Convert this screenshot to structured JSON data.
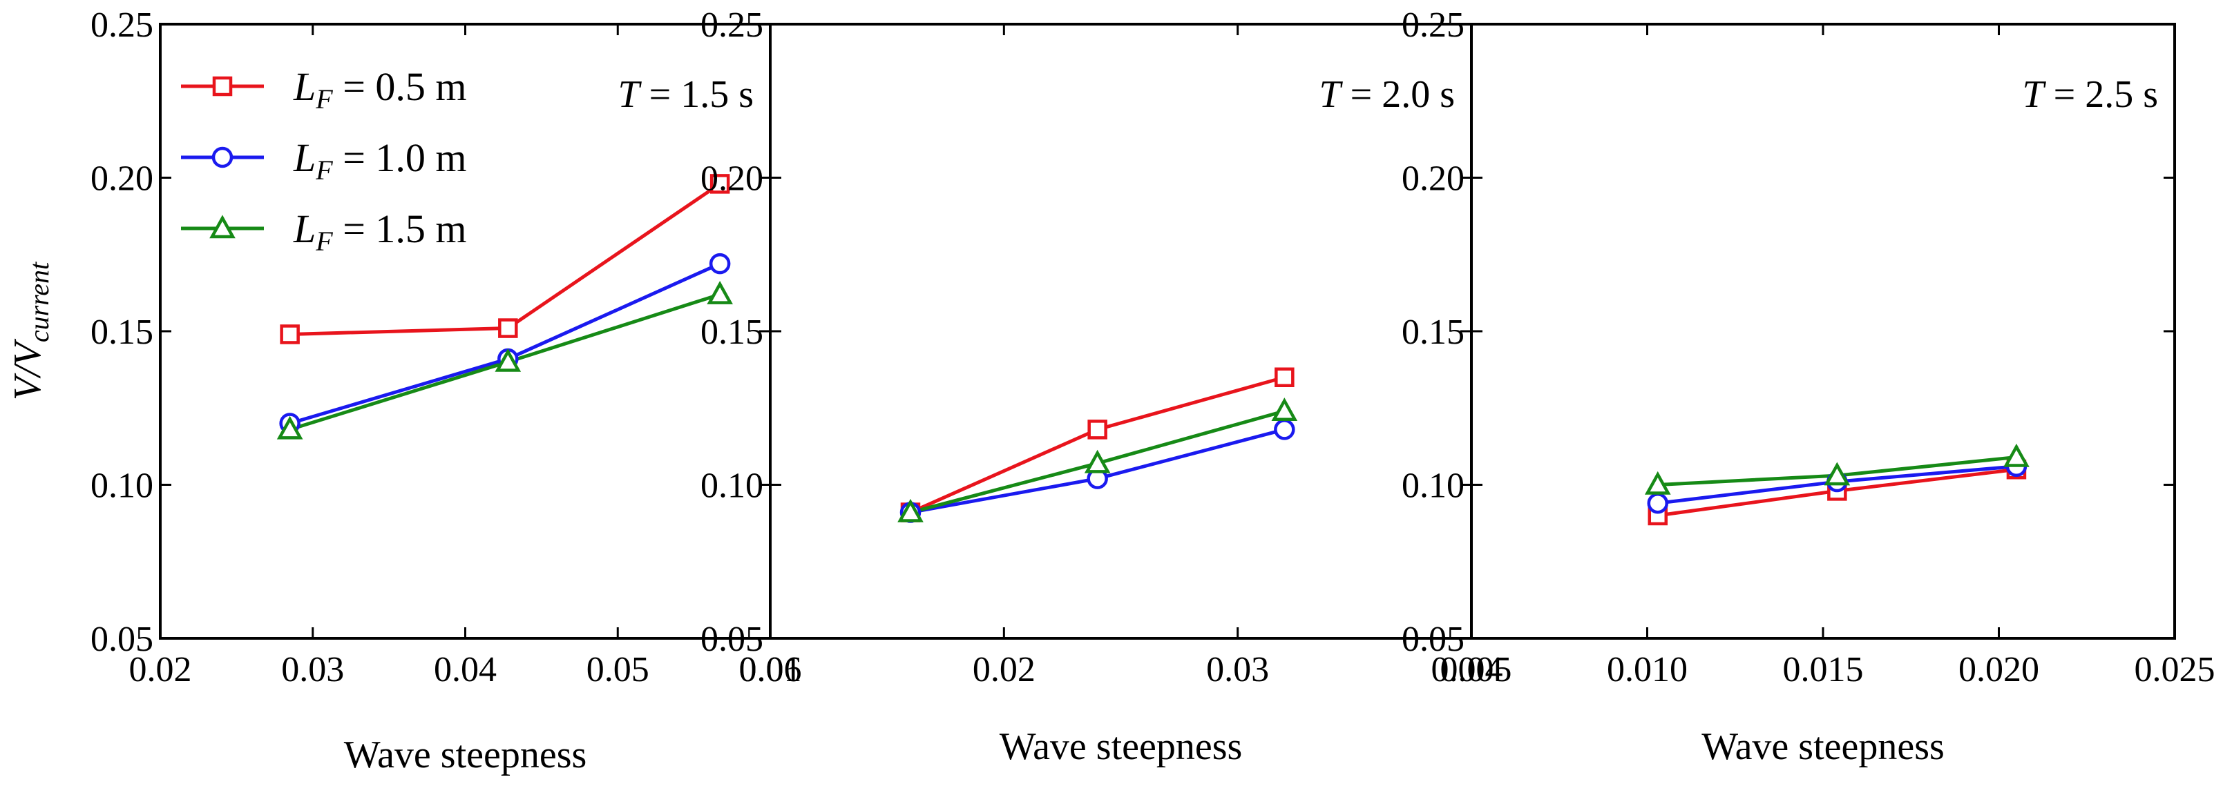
{
  "chart_data": [
    {
      "type": "line",
      "panel_label": "T = 1.5 s",
      "panel_label_italic": "T",
      "panel_label_rest": " = 1.5 s",
      "xlabel": "Wave steepness",
      "ylabel": "V/V_current",
      "ylabel_main": "V/V",
      "ylabel_sub": "current",
      "xlim": [
        0.02,
        0.06
      ],
      "ylim": [
        0.05,
        0.25
      ],
      "xticks": [
        0.02,
        0.03,
        0.04,
        0.05,
        0.06
      ],
      "xtick_labels": [
        "0.02",
        "0.03",
        "0.04",
        "0.05",
        "0.06"
      ],
      "yticks": [
        0.05,
        0.1,
        0.15,
        0.2,
        0.25
      ],
      "ytick_labels": [
        "0.05",
        "0.10",
        "0.15",
        "0.20",
        "0.25"
      ],
      "x": [
        0.0285,
        0.0428,
        0.0567
      ],
      "series": [
        {
          "name": "LF = 0.5 m",
          "color": "#e8141c",
          "marker": "square",
          "values": [
            0.149,
            0.151,
            0.198
          ]
        },
        {
          "name": "LF = 1.0 m",
          "color": "#1a1aef",
          "marker": "circle",
          "values": [
            0.12,
            0.141,
            0.172
          ]
        },
        {
          "name": "LF = 1.5 m",
          "color": "#168a16",
          "marker": "triangle",
          "values": [
            0.118,
            0.14,
            0.162
          ]
        }
      ],
      "legend": {
        "position": "top-left",
        "entries": [
          {
            "symbol": "L",
            "sub": "F",
            "rest": " = 0.5 m",
            "color": "#e8141c",
            "marker": "square"
          },
          {
            "symbol": "L",
            "sub": "F",
            "rest": " = 1.0 m",
            "color": "#1a1aef",
            "marker": "circle"
          },
          {
            "symbol": "L",
            "sub": "F",
            "rest": " = 1.5 m",
            "color": "#168a16",
            "marker": "triangle"
          }
        ]
      }
    },
    {
      "type": "line",
      "panel_label": "T = 2.0 s",
      "panel_label_italic": "T",
      "panel_label_rest": " = 2.0 s",
      "xlabel": "Wave steepness",
      "xlim": [
        0.01,
        0.04
      ],
      "ylim": [
        0.05,
        0.25
      ],
      "xticks": [
        0.01,
        0.02,
        0.03,
        0.04
      ],
      "xtick_labels": [
        "0.01",
        "0.02",
        "0.03",
        "0.04"
      ],
      "yticks": [
        0.05,
        0.1,
        0.15,
        0.2,
        0.25
      ],
      "ytick_labels": [
        "0.05",
        "0.10",
        "0.15",
        "0.20",
        "0.25"
      ],
      "x": [
        0.016,
        0.024,
        0.032
      ],
      "series": [
        {
          "name": "LF = 0.5 m",
          "color": "#e8141c",
          "marker": "square",
          "values": [
            0.091,
            0.118,
            0.135
          ]
        },
        {
          "name": "LF = 1.0 m",
          "color": "#1a1aef",
          "marker": "circle",
          "values": [
            0.091,
            0.102,
            0.118
          ]
        },
        {
          "name": "LF = 1.5 m",
          "color": "#168a16",
          "marker": "triangle",
          "values": [
            0.091,
            0.107,
            0.124
          ]
        }
      ]
    },
    {
      "type": "line",
      "panel_label": "T = 2.5 s",
      "panel_label_italic": "T",
      "panel_label_rest": " = 2.5 s",
      "xlabel": "Wave steepness",
      "xlim": [
        0.005,
        0.025
      ],
      "ylim": [
        0.05,
        0.25
      ],
      "xticks": [
        0.005,
        0.01,
        0.015,
        0.02,
        0.025
      ],
      "xtick_labels": [
        "0.005",
        "0.010",
        "0.015",
        "0.020",
        "0.025"
      ],
      "yticks": [
        0.05,
        0.1,
        0.15,
        0.2,
        0.25
      ],
      "ytick_labels": [
        "0.05",
        "0.10",
        "0.15",
        "0.20",
        "0.25"
      ],
      "x": [
        0.0103,
        0.0154,
        0.0205
      ],
      "series": [
        {
          "name": "LF = 0.5 m",
          "color": "#e8141c",
          "marker": "square",
          "values": [
            0.09,
            0.098,
            0.105
          ]
        },
        {
          "name": "LF = 1.0 m",
          "color": "#1a1aef",
          "marker": "circle",
          "values": [
            0.094,
            0.101,
            0.106
          ]
        },
        {
          "name": "LF = 1.5 m",
          "color": "#168a16",
          "marker": "triangle",
          "values": [
            0.1,
            0.103,
            0.109
          ]
        }
      ]
    }
  ]
}
